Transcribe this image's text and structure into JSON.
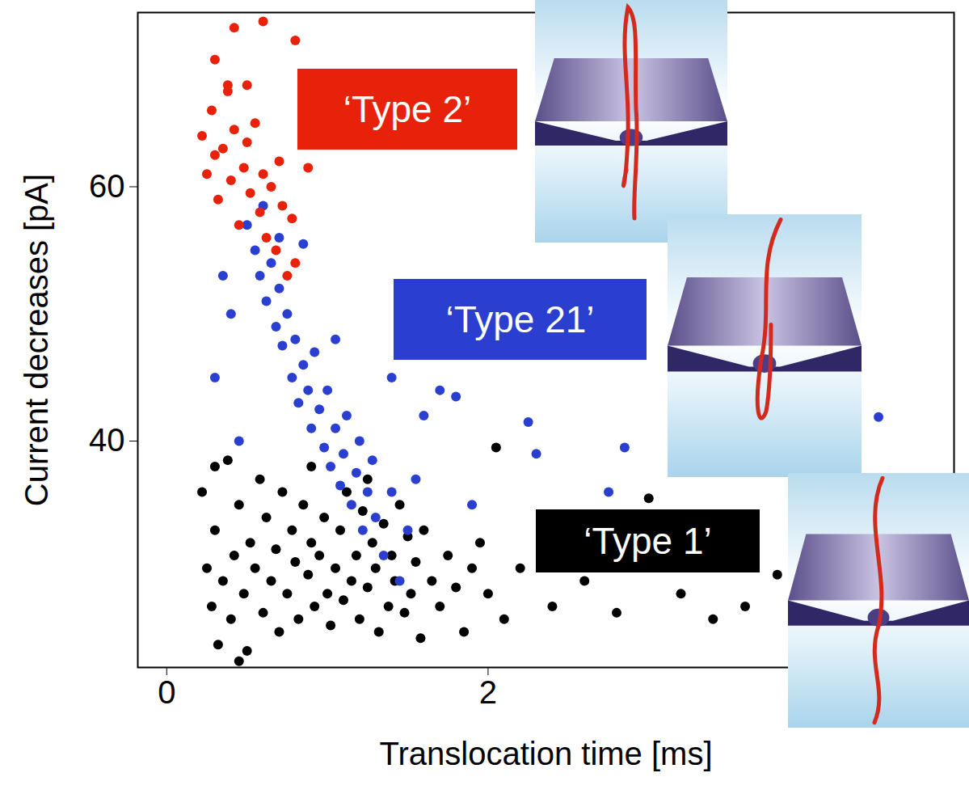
{
  "chart_data": {
    "type": "scatter",
    "x_label": "Translocation time [ms]",
    "y_label": "Current decreases [pA]",
    "xlim": [
      -0.18,
      4.9
    ],
    "xticks": [
      0,
      2
    ],
    "ylim": [
      22.2,
      73.7
    ],
    "yticks": [
      40,
      60
    ],
    "series": [
      {
        "name": "‘Type 2’",
        "color": "#e8220a",
        "marker": "circle",
        "x": [
          0.22,
          0.25,
          0.28,
          0.3,
          0.32,
          0.35,
          0.38,
          0.4,
          0.42,
          0.45,
          0.48,
          0.5,
          0.52,
          0.55,
          0.58,
          0.6,
          0.62,
          0.65,
          0.68,
          0.7,
          0.72,
          0.75,
          0.78,
          0.8,
          0.42,
          0.3,
          0.6,
          0.8,
          0.38,
          0.5,
          0.88
        ],
        "y": [
          64,
          61,
          66,
          62.5,
          59,
          63,
          68,
          60.5,
          64.5,
          57,
          61.5,
          63.5,
          59.5,
          65,
          58,
          61,
          56,
          60,
          55,
          62,
          58.5,
          53,
          57.5,
          54,
          72.5,
          70,
          73,
          71.5,
          67.5,
          68,
          61.5
        ]
      },
      {
        "name": "‘Type 21’",
        "color": "#2a3fd0",
        "marker": "circle",
        "x": [
          0.5,
          0.55,
          0.6,
          0.58,
          0.62,
          0.65,
          0.68,
          0.7,
          0.72,
          0.75,
          0.78,
          0.8,
          0.82,
          0.85,
          0.88,
          0.9,
          0.92,
          0.95,
          0.98,
          1.0,
          1.02,
          1.05,
          1.08,
          1.1,
          1.12,
          1.15,
          1.18,
          1.2,
          1.22,
          1.25,
          1.28,
          1.3,
          1.35,
          1.4,
          1.45,
          1.5,
          1.55,
          0.3,
          0.4,
          0.45,
          0.35,
          1.4,
          1.6,
          1.7,
          1.8,
          2.25,
          2.3,
          2.85,
          2.75,
          1.9,
          4.43,
          0.7,
          0.85,
          1.05
        ],
        "y": [
          57,
          55,
          58.5,
          53,
          51,
          54,
          49,
          52,
          47.5,
          50,
          45,
          48,
          43,
          46,
          44,
          41,
          47,
          42.5,
          39.5,
          44,
          38,
          41,
          36.5,
          39,
          42,
          35,
          37.5,
          40,
          33,
          36,
          38.5,
          34,
          31,
          36,
          29,
          33,
          37,
          45,
          50,
          40,
          53,
          45,
          42,
          44,
          43.5,
          41.5,
          39,
          39.5,
          36,
          35,
          41.9,
          56,
          55.5,
          48
        ]
      },
      {
        "name": "‘Type 1’",
        "color": "#000000",
        "marker": "circle",
        "x": [
          0.22,
          0.25,
          0.28,
          0.3,
          0.32,
          0.35,
          0.38,
          0.4,
          0.42,
          0.45,
          0.48,
          0.5,
          0.52,
          0.55,
          0.58,
          0.6,
          0.62,
          0.65,
          0.68,
          0.7,
          0.72,
          0.75,
          0.78,
          0.8,
          0.82,
          0.85,
          0.88,
          0.9,
          0.92,
          0.95,
          0.98,
          1.0,
          1.02,
          1.05,
          1.08,
          1.1,
          1.12,
          1.15,
          1.18,
          1.2,
          1.22,
          1.25,
          1.28,
          1.3,
          1.32,
          1.35,
          1.38,
          1.4,
          1.42,
          1.45,
          1.48,
          1.5,
          1.52,
          1.55,
          1.58,
          1.6,
          1.65,
          1.7,
          1.75,
          1.8,
          1.85,
          1.9,
          1.95,
          2.0,
          2.05,
          2.1,
          2.2,
          2.4,
          2.6,
          2.8,
          3.0,
          3.2,
          3.4,
          3.6,
          3.8,
          0.45,
          0.9,
          1.25,
          0.3
        ],
        "y": [
          36,
          30,
          27,
          33,
          24,
          29,
          38.5,
          26,
          31,
          35,
          28,
          23.5,
          32,
          30,
          37,
          26.5,
          34,
          29,
          31.5,
          25,
          36,
          28,
          33,
          30.5,
          26,
          35,
          29.5,
          32,
          27,
          31,
          34,
          28,
          25.5,
          30,
          33,
          27.5,
          36,
          29,
          31,
          26,
          34.5,
          28.5,
          32,
          30,
          25,
          33.5,
          27,
          31,
          29,
          35,
          26.5,
          32.5,
          28,
          30.5,
          24.5,
          33,
          29,
          27,
          31,
          28.5,
          25,
          30,
          32,
          28,
          39.5,
          26,
          30,
          27,
          29,
          26.5,
          35.5,
          28,
          26,
          27,
          29.5,
          22.7,
          38,
          37,
          38
        ]
      }
    ]
  }
}
